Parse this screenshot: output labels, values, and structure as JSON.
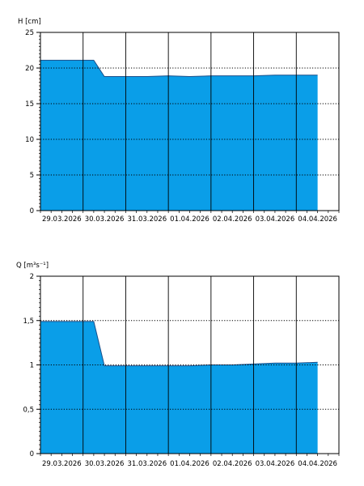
{
  "chart_data": [
    {
      "type": "area",
      "ylabel": "H [cm]",
      "ylim": [
        0,
        25
      ],
      "y_ticks": [
        "0",
        "5",
        "10",
        "15",
        "20",
        "25"
      ],
      "y_tick_values": [
        0,
        5,
        10,
        15,
        20,
        25
      ],
      "x_start": "29.03.2026",
      "x_end": "05.04.2026",
      "x_ticks": [
        "29.03.2026",
        "30.03.2026",
        "31.03.2026",
        "01.04.2026",
        "02.04.2026",
        "03.04.2026",
        "04.04.2026"
      ],
      "grid": true,
      "fill_color": "#0a9ee8",
      "series": [
        {
          "x": [
            "29.03.2026 00:00",
            "30.03.2026 00:00",
            "30.03.2026 06:00",
            "30.03.2026 12:00",
            "31.03.2026 00:00",
            "31.03.2026 12:00",
            "01.04.2026 00:00",
            "01.04.2026 12:00",
            "02.04.2026 00:00",
            "02.04.2026 12:00",
            "03.04.2026 00:00",
            "03.04.2026 12:00",
            "04.04.2026 00:00",
            "04.04.2026 12:00"
          ],
          "y": [
            21.1,
            21.1,
            21.1,
            18.8,
            18.8,
            18.8,
            18.9,
            18.8,
            18.9,
            18.9,
            18.9,
            19.0,
            19.0,
            19.0
          ]
        }
      ]
    },
    {
      "type": "area",
      "ylabel": "Q [m³s⁻¹]",
      "ylim": [
        0,
        2
      ],
      "y_ticks": [
        "0",
        "0,5",
        "1",
        "1,5",
        "2"
      ],
      "y_tick_values": [
        0,
        0.5,
        1,
        1.5,
        2
      ],
      "x_start": "29.03.2026",
      "x_end": "05.04.2026",
      "x_ticks": [
        "29.03.2026",
        "30.03.2026",
        "31.03.2026",
        "01.04.2026",
        "02.04.2026",
        "03.04.2026",
        "04.04.2026"
      ],
      "grid": true,
      "fill_color": "#0a9ee8",
      "series": [
        {
          "x": [
            "29.03.2026 00:00",
            "30.03.2026 00:00",
            "30.03.2026 06:00",
            "30.03.2026 12:00",
            "31.03.2026 00:00",
            "31.03.2026 12:00",
            "01.04.2026 00:00",
            "01.04.2026 12:00",
            "02.04.2026 00:00",
            "02.04.2026 12:00",
            "03.04.2026 00:00",
            "03.04.2026 12:00",
            "04.04.2026 00:00",
            "04.04.2026 12:00"
          ],
          "y": [
            1.49,
            1.49,
            1.49,
            0.99,
            0.99,
            0.99,
            0.99,
            0.99,
            1.0,
            1.0,
            1.01,
            1.02,
            1.02,
            1.03
          ]
        }
      ]
    }
  ]
}
